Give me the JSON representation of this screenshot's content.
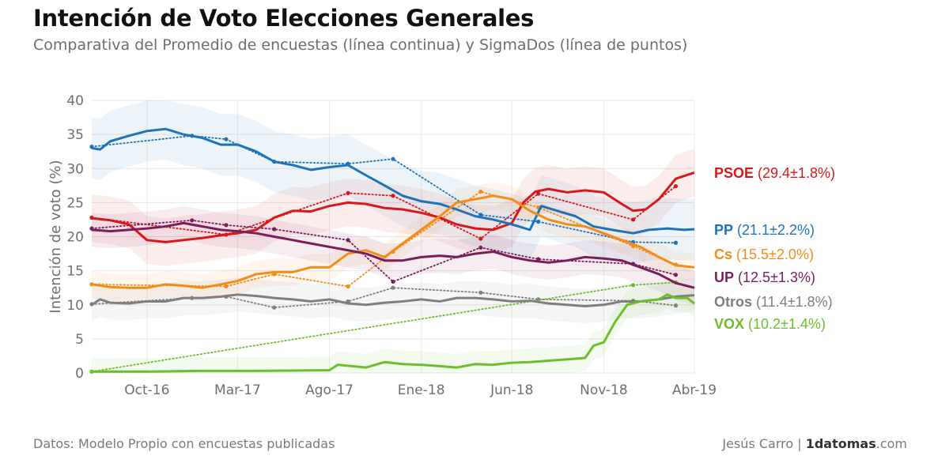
{
  "title": "Intención de Voto Elecciones Generales",
  "subtitle": "Comparativa del Promedio de encuestas (línea continua) y SigmaDos (línea de puntos)",
  "footer": {
    "source": "Datos: Modelo Propio con encuestas publicadas",
    "author": "Jesús Carro | ",
    "brand_bold": "1datomas",
    "brand_rest": ".com"
  },
  "chart_data": {
    "type": "line",
    "title": "Intención de Voto Elecciones Generales",
    "subtitle": "Comparativa del Promedio de encuestas (línea continua) y SigmaDos (línea de puntos)",
    "ylabel": "Intención de voto (%)",
    "xlabel": "",
    "ylim": [
      0,
      40
    ],
    "yticks": [
      0,
      5,
      10,
      15,
      20,
      25,
      30,
      35,
      40
    ],
    "xlim": [
      "2016-07-01",
      "2019-04-01"
    ],
    "xticks": [
      {
        "date": "2016-10-01",
        "label": "Oct-16"
      },
      {
        "date": "2017-03-01",
        "label": "Mar-17"
      },
      {
        "date": "2017-08-01",
        "label": "Ago-17"
      },
      {
        "date": "2018-01-01",
        "label": "Ene-18"
      },
      {
        "date": "2018-06-01",
        "label": "Jun-18"
      },
      {
        "date": "2018-11-01",
        "label": "Nov-18"
      },
      {
        "date": "2019-04-01",
        "label": "Abr-19"
      }
    ],
    "grid": true,
    "legend_position": "right",
    "series": [
      {
        "name": "PSOE",
        "label": "(29.4±1.8%)",
        "color": "#d7191c",
        "band": 3.5,
        "average": [
          [
            "2016-07-01",
            22.7
          ],
          [
            "2016-08-01",
            22.4
          ],
          [
            "2016-09-01",
            21.8
          ],
          [
            "2016-10-01",
            19.5
          ],
          [
            "2016-11-01",
            19.2
          ],
          [
            "2016-12-01",
            19.5
          ],
          [
            "2017-01-01",
            19.8
          ],
          [
            "2017-02-01",
            20.2
          ],
          [
            "2017-03-01",
            20.5
          ],
          [
            "2017-04-01",
            21.0
          ],
          [
            "2017-05-01",
            22.8
          ],
          [
            "2017-06-01",
            23.8
          ],
          [
            "2017-07-01",
            23.7
          ],
          [
            "2017-08-01",
            24.5
          ],
          [
            "2017-09-01",
            25.0
          ],
          [
            "2017-10-01",
            24.8
          ],
          [
            "2017-11-01",
            24.2
          ],
          [
            "2017-12-01",
            24.0
          ],
          [
            "2018-01-01",
            23.5
          ],
          [
            "2018-02-01",
            22.8
          ],
          [
            "2018-03-01",
            21.8
          ],
          [
            "2018-04-01",
            21.2
          ],
          [
            "2018-05-01",
            21.0
          ],
          [
            "2018-06-01",
            22.0
          ],
          [
            "2018-06-20",
            25.0
          ],
          [
            "2018-07-10",
            26.6
          ],
          [
            "2018-08-01",
            27.0
          ],
          [
            "2018-09-01",
            26.5
          ],
          [
            "2018-10-01",
            26.8
          ],
          [
            "2018-11-01",
            26.5
          ],
          [
            "2018-12-01",
            24.8
          ],
          [
            "2018-12-20",
            23.8
          ],
          [
            "2019-01-10",
            24.0
          ],
          [
            "2019-02-01",
            25.5
          ],
          [
            "2019-03-01",
            28.5
          ],
          [
            "2019-04-01",
            29.4
          ]
        ],
        "sigmados": [
          [
            "2016-07-01",
            22.8
          ],
          [
            "2017-02-10",
            20.3
          ],
          [
            "2017-09-01",
            26.4
          ],
          [
            "2017-11-15",
            26.0
          ],
          [
            "2018-04-10",
            19.7
          ],
          [
            "2018-07-15",
            26.3
          ],
          [
            "2018-12-20",
            22.5
          ],
          [
            "2019-03-01",
            27.4
          ]
        ]
      },
      {
        "name": "PP",
        "label": "(21.1±2.2%)",
        "color": "#1f73b7",
        "band": 4.5,
        "average": [
          [
            "2016-07-01",
            33.0
          ],
          [
            "2016-07-15",
            32.8
          ],
          [
            "2016-08-01",
            34.0
          ],
          [
            "2016-09-01",
            34.8
          ],
          [
            "2016-10-01",
            35.5
          ],
          [
            "2016-11-01",
            35.8
          ],
          [
            "2016-12-01",
            35.0
          ],
          [
            "2017-01-01",
            34.5
          ],
          [
            "2017-02-01",
            33.5
          ],
          [
            "2017-03-01",
            33.5
          ],
          [
            "2017-04-01",
            32.5
          ],
          [
            "2017-05-01",
            31.0
          ],
          [
            "2017-06-01",
            30.5
          ],
          [
            "2017-07-01",
            29.8
          ],
          [
            "2017-08-01",
            30.2
          ],
          [
            "2017-09-01",
            30.5
          ],
          [
            "2017-10-01",
            29.0
          ],
          [
            "2017-11-01",
            27.5
          ],
          [
            "2017-12-01",
            26.0
          ],
          [
            "2018-01-01",
            25.2
          ],
          [
            "2018-02-01",
            24.8
          ],
          [
            "2018-03-01",
            24.0
          ],
          [
            "2018-04-01",
            23.0
          ],
          [
            "2018-05-01",
            22.5
          ],
          [
            "2018-06-01",
            21.8
          ],
          [
            "2018-07-01",
            21.0
          ],
          [
            "2018-07-20",
            24.5
          ],
          [
            "2018-08-15",
            23.8
          ],
          [
            "2018-09-15",
            23.0
          ],
          [
            "2018-10-15",
            21.5
          ],
          [
            "2018-11-15",
            21.0
          ],
          [
            "2018-12-20",
            20.5
          ],
          [
            "2019-01-15",
            21.0
          ],
          [
            "2019-02-15",
            21.2
          ],
          [
            "2019-03-15",
            21.0
          ],
          [
            "2019-04-01",
            21.1
          ]
        ],
        "sigmados": [
          [
            "2016-07-01",
            33.2
          ],
          [
            "2016-12-15",
            34.8
          ],
          [
            "2017-02-10",
            34.3
          ],
          [
            "2017-05-01",
            31.0
          ],
          [
            "2017-09-01",
            30.7
          ],
          [
            "2017-11-15",
            31.4
          ],
          [
            "2018-04-10",
            23.2
          ],
          [
            "2018-07-15",
            22.2
          ],
          [
            "2018-12-20",
            19.2
          ],
          [
            "2019-03-01",
            19.1
          ]
        ]
      },
      {
        "name": "Cs",
        "label": "(15.5±2.0%)",
        "color": "#f28c1a",
        "band": 2.0,
        "average": [
          [
            "2016-07-01",
            13.0
          ],
          [
            "2016-08-01",
            12.6
          ],
          [
            "2016-09-01",
            12.5
          ],
          [
            "2016-10-01",
            12.5
          ],
          [
            "2016-11-01",
            13.0
          ],
          [
            "2016-12-01",
            12.8
          ],
          [
            "2017-01-01",
            12.5
          ],
          [
            "2017-02-01",
            13.0
          ],
          [
            "2017-03-01",
            13.5
          ],
          [
            "2017-04-01",
            14.5
          ],
          [
            "2017-05-01",
            14.8
          ],
          [
            "2017-06-01",
            14.8
          ],
          [
            "2017-07-01",
            15.5
          ],
          [
            "2017-08-01",
            15.5
          ],
          [
            "2017-09-01",
            17.5
          ],
          [
            "2017-10-01",
            18.0
          ],
          [
            "2017-11-01",
            17.0
          ],
          [
            "2017-12-01",
            19.0
          ],
          [
            "2018-01-01",
            21.0
          ],
          [
            "2018-02-01",
            23.0
          ],
          [
            "2018-03-01",
            25.0
          ],
          [
            "2018-04-01",
            25.5
          ],
          [
            "2018-05-01",
            26.0
          ],
          [
            "2018-06-01",
            25.5
          ],
          [
            "2018-07-01",
            23.8
          ],
          [
            "2018-08-01",
            22.5
          ],
          [
            "2018-09-01",
            21.8
          ],
          [
            "2018-10-01",
            21.5
          ],
          [
            "2018-11-01",
            20.5
          ],
          [
            "2018-12-01",
            19.5
          ],
          [
            "2019-01-01",
            18.5
          ],
          [
            "2019-02-01",
            17.0
          ],
          [
            "2019-03-01",
            15.8
          ],
          [
            "2019-04-01",
            15.5
          ]
        ],
        "sigmados": [
          [
            "2016-07-01",
            13.0
          ],
          [
            "2017-02-10",
            12.7
          ],
          [
            "2017-05-01",
            14.5
          ],
          [
            "2017-09-01",
            12.7
          ],
          [
            "2017-11-15",
            17.8
          ],
          [
            "2018-04-10",
            26.6
          ],
          [
            "2018-07-15",
            24.3
          ],
          [
            "2018-12-20",
            18.6
          ],
          [
            "2019-03-01",
            15.9
          ]
        ]
      },
      {
        "name": "UP",
        "label": "(12.5±1.3%)",
        "color": "#7a1e5a",
        "band": 2.5,
        "average": [
          [
            "2016-07-01",
            21.0
          ],
          [
            "2016-08-01",
            20.8
          ],
          [
            "2016-09-01",
            21.0
          ],
          [
            "2016-10-01",
            21.2
          ],
          [
            "2016-11-01",
            21.5
          ],
          [
            "2016-12-01",
            22.0
          ],
          [
            "2017-01-01",
            21.5
          ],
          [
            "2017-02-01",
            21.0
          ],
          [
            "2017-03-01",
            20.8
          ],
          [
            "2017-04-01",
            20.5
          ],
          [
            "2017-05-01",
            20.0
          ],
          [
            "2017-06-01",
            19.5
          ],
          [
            "2017-07-01",
            19.0
          ],
          [
            "2017-08-01",
            18.5
          ],
          [
            "2017-09-01",
            18.0
          ],
          [
            "2017-10-01",
            17.5
          ],
          [
            "2017-11-01",
            16.5
          ],
          [
            "2017-12-01",
            16.5
          ],
          [
            "2018-01-01",
            17.0
          ],
          [
            "2018-02-01",
            17.2
          ],
          [
            "2018-03-01",
            17.0
          ],
          [
            "2018-04-01",
            17.5
          ],
          [
            "2018-05-01",
            17.8
          ],
          [
            "2018-06-01",
            17.0
          ],
          [
            "2018-07-01",
            16.5
          ],
          [
            "2018-08-01",
            16.2
          ],
          [
            "2018-09-01",
            16.5
          ],
          [
            "2018-10-01",
            17.0
          ],
          [
            "2018-11-01",
            16.8
          ],
          [
            "2018-12-01",
            16.5
          ],
          [
            "2019-01-01",
            15.5
          ],
          [
            "2019-02-01",
            14.5
          ],
          [
            "2019-03-01",
            13.2
          ],
          [
            "2019-04-01",
            12.5
          ]
        ],
        "sigmados": [
          [
            "2016-07-01",
            21.2
          ],
          [
            "2016-12-15",
            22.4
          ],
          [
            "2017-02-10",
            21.7
          ],
          [
            "2017-05-01",
            21.1
          ],
          [
            "2017-09-01",
            19.5
          ],
          [
            "2017-11-15",
            13.4
          ],
          [
            "2018-04-10",
            18.4
          ],
          [
            "2018-07-15",
            16.7
          ],
          [
            "2018-12-20",
            16.0
          ],
          [
            "2019-03-01",
            14.4
          ]
        ]
      },
      {
        "name": "Otros",
        "label": "(11.4±1.8%)",
        "color": "#7f7f7f",
        "band": 2.5,
        "average": [
          [
            "2016-07-01",
            10.0
          ],
          [
            "2016-07-15",
            10.8
          ],
          [
            "2016-08-01",
            10.3
          ],
          [
            "2016-09-01",
            10.2
          ],
          [
            "2016-10-01",
            10.5
          ],
          [
            "2016-11-01",
            10.5
          ],
          [
            "2016-12-01",
            11.0
          ],
          [
            "2017-01-01",
            11.0
          ],
          [
            "2017-02-01",
            11.2
          ],
          [
            "2017-03-01",
            11.5
          ],
          [
            "2017-04-01",
            11.3
          ],
          [
            "2017-05-01",
            11.0
          ],
          [
            "2017-06-01",
            10.8
          ],
          [
            "2017-07-01",
            10.5
          ],
          [
            "2017-08-01",
            10.8
          ],
          [
            "2017-09-01",
            10.2
          ],
          [
            "2017-10-01",
            10.0
          ],
          [
            "2017-11-01",
            10.3
          ],
          [
            "2017-12-01",
            10.5
          ],
          [
            "2018-01-01",
            10.8
          ],
          [
            "2018-02-01",
            10.5
          ],
          [
            "2018-03-01",
            11.0
          ],
          [
            "2018-04-01",
            11.0
          ],
          [
            "2018-05-01",
            10.8
          ],
          [
            "2018-06-01",
            10.5
          ],
          [
            "2018-07-01",
            10.6
          ],
          [
            "2018-08-01",
            10.2
          ],
          [
            "2018-09-01",
            10.0
          ],
          [
            "2018-10-01",
            9.8
          ],
          [
            "2018-11-01",
            10.0
          ],
          [
            "2018-12-01",
            10.5
          ],
          [
            "2019-01-01",
            10.5
          ],
          [
            "2019-02-01",
            10.8
          ],
          [
            "2019-03-01",
            11.2
          ],
          [
            "2019-04-01",
            11.4
          ]
        ],
        "sigmados": [
          [
            "2016-07-01",
            10.1
          ],
          [
            "2016-12-15",
            11.0
          ],
          [
            "2017-02-10",
            11.2
          ],
          [
            "2017-05-01",
            9.6
          ],
          [
            "2017-09-01",
            10.5
          ],
          [
            "2017-11-15",
            12.5
          ],
          [
            "2018-04-10",
            11.8
          ],
          [
            "2018-07-15",
            10.8
          ],
          [
            "2018-12-20",
            10.6
          ],
          [
            "2019-03-01",
            9.9
          ]
        ]
      },
      {
        "name": "VOX",
        "label": "(10.2±1.4%)",
        "color": "#6cbe2c",
        "band": 2.0,
        "average": [
          [
            "2016-07-01",
            0.2
          ],
          [
            "2016-10-01",
            0.2
          ],
          [
            "2017-01-01",
            0.3
          ],
          [
            "2017-04-01",
            0.3
          ],
          [
            "2017-08-01",
            0.4
          ],
          [
            "2017-08-15",
            1.2
          ],
          [
            "2017-10-01",
            0.8
          ],
          [
            "2017-11-01",
            1.6
          ],
          [
            "2017-12-01",
            1.3
          ],
          [
            "2018-01-01",
            1.2
          ],
          [
            "2018-02-01",
            1.0
          ],
          [
            "2018-03-01",
            0.8
          ],
          [
            "2018-04-01",
            1.3
          ],
          [
            "2018-05-01",
            1.2
          ],
          [
            "2018-06-01",
            1.5
          ],
          [
            "2018-07-01",
            1.6
          ],
          [
            "2018-08-01",
            1.8
          ],
          [
            "2018-09-01",
            2.0
          ],
          [
            "2018-10-01",
            2.2
          ],
          [
            "2018-10-15",
            4.0
          ],
          [
            "2018-11-01",
            4.5
          ],
          [
            "2018-11-20",
            7.5
          ],
          [
            "2018-12-10",
            10.0
          ],
          [
            "2019-01-01",
            10.5
          ],
          [
            "2019-02-01",
            10.8
          ],
          [
            "2019-02-15",
            11.5
          ],
          [
            "2019-03-01",
            11.0
          ],
          [
            "2019-03-20",
            11.0
          ],
          [
            "2019-04-01",
            10.2
          ]
        ],
        "sigmados": [
          [
            "2016-07-01",
            0.2
          ],
          [
            "2018-12-20",
            12.9
          ],
          [
            "2019-03-01",
            13.3
          ]
        ]
      }
    ]
  }
}
